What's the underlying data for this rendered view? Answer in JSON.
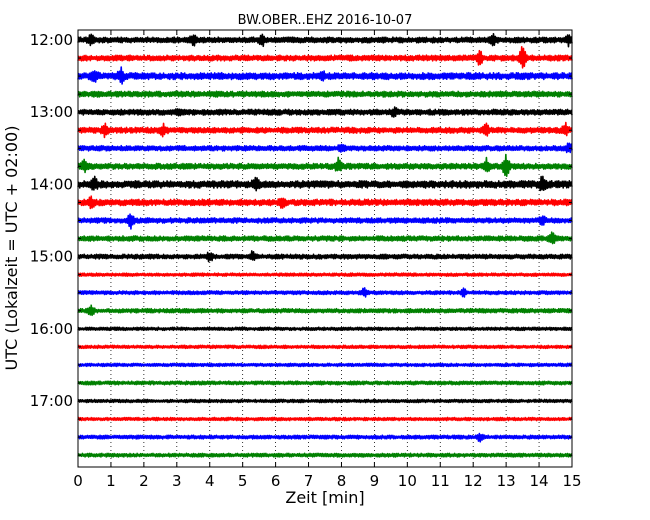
{
  "chart_data": {
    "type": "line",
    "title": "BW.OBER..EHZ 2016-10-07",
    "xlabel": "Zeit  [min]",
    "ylabel": "UTC (Lokalzeit = UTC + 02:00)",
    "xlim": [
      0,
      15
    ],
    "x_ticks": [
      "0",
      "1",
      "2",
      "3",
      "4",
      "5",
      "6",
      "7",
      "8",
      "9",
      "10",
      "11",
      "12",
      "13",
      "14",
      "15"
    ],
    "y_ticks": [
      "12:00",
      "13:00",
      "14:00",
      "15:00",
      "16:00",
      "17:00"
    ],
    "grid": "vertical dotted",
    "trace_colors": [
      "#000000",
      "#ff0000",
      "#0000ff",
      "#008000"
    ],
    "traces": [
      {
        "start": "12:00",
        "color": "#000000",
        "noise": 0.55,
        "events": [
          [
            0.4,
            0.8
          ],
          [
            3.5,
            0.7
          ],
          [
            5.6,
            0.8
          ],
          [
            12.6,
            0.7
          ],
          [
            14.9,
            0.9
          ]
        ]
      },
      {
        "start": "12:15",
        "color": "#ff0000",
        "noise": 0.55,
        "events": [
          [
            12.2,
            1.0
          ],
          [
            13.5,
            1.8
          ]
        ]
      },
      {
        "start": "12:30",
        "color": "#0000ff",
        "noise": 0.65,
        "events": [
          [
            0.5,
            0.8
          ],
          [
            1.3,
            1.2
          ],
          [
            7.4,
            0.7
          ]
        ]
      },
      {
        "start": "12:45",
        "color": "#008000",
        "noise": 0.55,
        "events": []
      },
      {
        "start": "13:00",
        "color": "#000000",
        "noise": 0.55,
        "events": [
          [
            3.0,
            0.6
          ],
          [
            9.6,
            0.6
          ]
        ]
      },
      {
        "start": "13:15",
        "color": "#ff0000",
        "noise": 0.55,
        "events": [
          [
            0.8,
            1.0
          ],
          [
            2.6,
            1.0
          ],
          [
            12.4,
            0.8
          ],
          [
            14.8,
            1.0
          ]
        ]
      },
      {
        "start": "13:30",
        "color": "#0000ff",
        "noise": 0.5,
        "events": [
          [
            8.0,
            0.6
          ],
          [
            14.9,
            0.8
          ]
        ]
      },
      {
        "start": "13:45",
        "color": "#008000",
        "noise": 0.55,
        "events": [
          [
            0.2,
            0.9
          ],
          [
            7.9,
            1.2
          ],
          [
            12.4,
            1.2
          ],
          [
            13.0,
            2.0
          ]
        ]
      },
      {
        "start": "14:00",
        "color": "#000000",
        "noise": 0.7,
        "events": [
          [
            0.5,
            0.9
          ],
          [
            5.4,
            0.9
          ],
          [
            14.1,
            1.1
          ]
        ]
      },
      {
        "start": "14:15",
        "color": "#ff0000",
        "noise": 0.6,
        "events": [
          [
            0.4,
            0.8
          ],
          [
            6.2,
            0.6
          ]
        ]
      },
      {
        "start": "14:30",
        "color": "#0000ff",
        "noise": 0.5,
        "events": [
          [
            1.6,
            1.2
          ],
          [
            14.1,
            0.7
          ]
        ]
      },
      {
        "start": "14:45",
        "color": "#008000",
        "noise": 0.5,
        "events": [
          [
            14.4,
            0.9
          ]
        ]
      },
      {
        "start": "15:00",
        "color": "#000000",
        "noise": 0.45,
        "events": [
          [
            4.0,
            0.7
          ],
          [
            5.3,
            0.7
          ]
        ]
      },
      {
        "start": "15:15",
        "color": "#ff0000",
        "noise": 0.3,
        "events": []
      },
      {
        "start": "15:30",
        "color": "#0000ff",
        "noise": 0.35,
        "events": [
          [
            8.7,
            0.7
          ],
          [
            11.7,
            0.6
          ]
        ]
      },
      {
        "start": "15:45",
        "color": "#008000",
        "noise": 0.4,
        "events": [
          [
            0.4,
            0.8
          ]
        ]
      },
      {
        "start": "16:00",
        "color": "#000000",
        "noise": 0.3,
        "events": []
      },
      {
        "start": "16:15",
        "color": "#ff0000",
        "noise": 0.3,
        "events": []
      },
      {
        "start": "16:30",
        "color": "#0000ff",
        "noise": 0.3,
        "events": []
      },
      {
        "start": "16:45",
        "color": "#008000",
        "noise": 0.35,
        "events": []
      },
      {
        "start": "17:00",
        "color": "#000000",
        "noise": 0.3,
        "events": []
      },
      {
        "start": "17:15",
        "color": "#ff0000",
        "noise": 0.3,
        "events": []
      },
      {
        "start": "17:30",
        "color": "#0000ff",
        "noise": 0.35,
        "events": [
          [
            12.2,
            0.6
          ]
        ]
      },
      {
        "start": "17:45",
        "color": "#008000",
        "noise": 0.35,
        "events": []
      }
    ]
  }
}
